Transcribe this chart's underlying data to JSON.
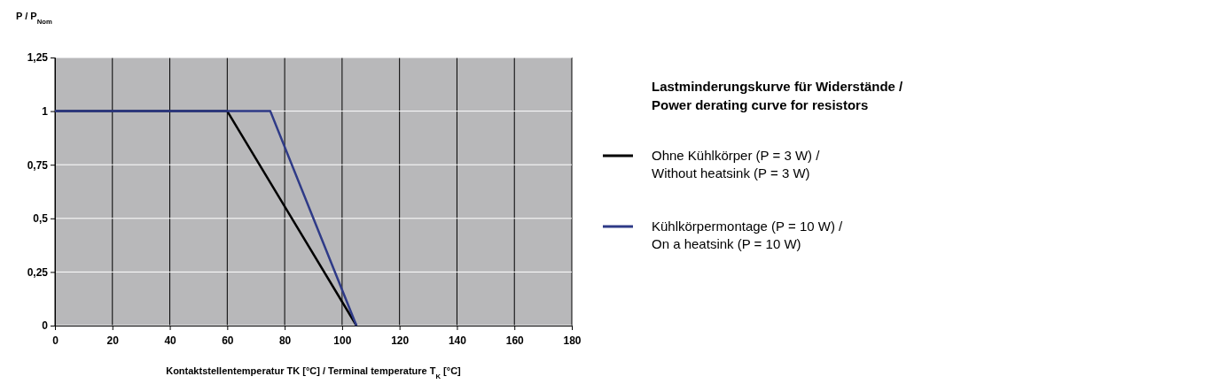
{
  "chart_data": {
    "type": "line",
    "ylabel": "P / P$_{Nom}$",
    "xlabel": "Kontaktstellentemperatur TK [°C] / Terminal temperature T$_{K}$ [°C]",
    "legend_title": "Lastminderungskurve für Widerstände /\nPower derating curve for resistors",
    "legend": "right",
    "grid": true,
    "marker": "none",
    "line_style": "solid",
    "xlim": [
      0,
      180
    ],
    "xticks": [
      0,
      20,
      40,
      60,
      80,
      100,
      120,
      140,
      160,
      180
    ],
    "ylim": [
      0,
      1.25
    ],
    "yticks": [
      0,
      {
        "value": 0.25,
        "label": "0,25"
      },
      {
        "value": 0.5,
        "label": "0,5"
      },
      {
        "value": 0.75,
        "label": "0,75"
      },
      1,
      {
        "value": 1.25,
        "label": "1,25"
      }
    ],
    "series": [
      {
        "name": "Ohne Kühlkörper (P = 3 W) /\nWithout heatsink (P = 3 W)",
        "color": "#000000",
        "x": [
          0,
          60,
          105
        ],
        "values": [
          1,
          1,
          0
        ]
      },
      {
        "name": "Kühlkörpermontage (P = 10 W) /\nOn a heatsink (P = 10 W)",
        "color": "#2e3a87",
        "x": [
          0,
          75,
          105
        ],
        "values": [
          1,
          1,
          0
        ]
      }
    ]
  }
}
